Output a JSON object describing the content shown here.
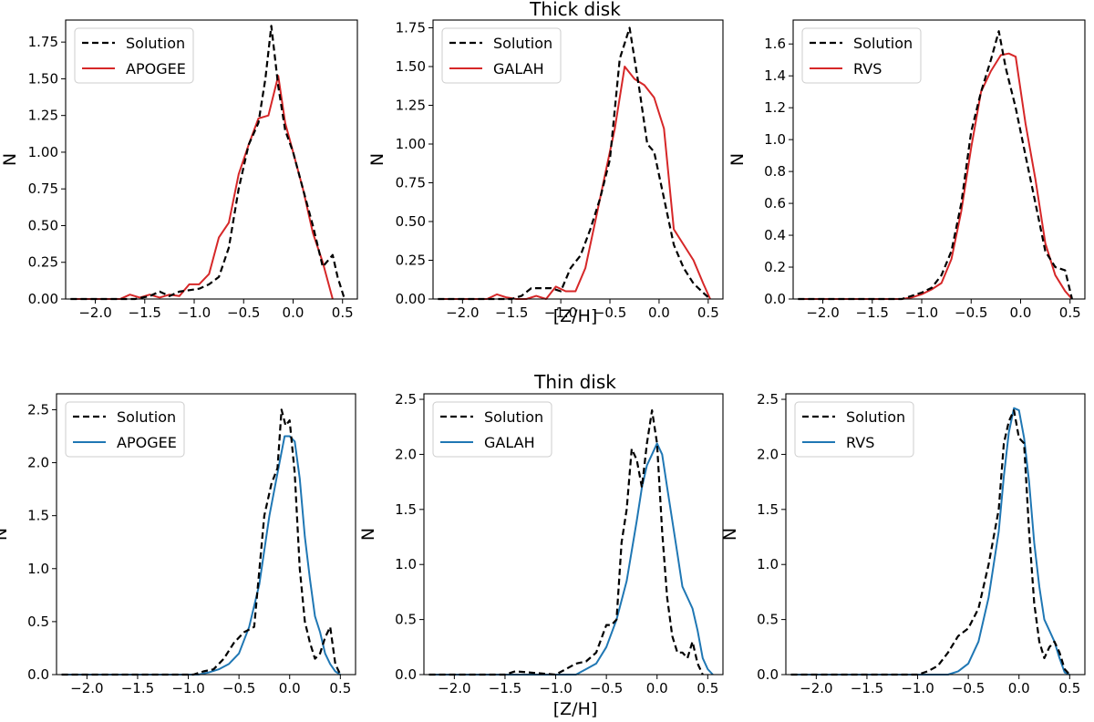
{
  "figure": {
    "row_titles": [
      "Thick disk",
      "Thin disk"
    ],
    "shared_xlabel": "[Z/H]",
    "ylabel": "N"
  },
  "colors": {
    "thick": "#d62728",
    "thin": "#1f77b4",
    "solution": "#000000"
  },
  "chart_data": [
    {
      "type": "line",
      "id": "thick-apogee",
      "title": "",
      "xlabel": "",
      "ylabel": "N",
      "xlim": [
        -2.3,
        0.65
      ],
      "ylim": [
        0,
        1.9
      ],
      "xticks": [
        -2.0,
        -1.5,
        -1.0,
        -0.5,
        0.0,
        0.5
      ],
      "xtick_labels": [
        "−2.0",
        "−1.5",
        "−1.0",
        "−0.5",
        "0.0",
        "0.5"
      ],
      "yticks": [
        0,
        0.25,
        0.5,
        0.75,
        1.0,
        1.25,
        1.5,
        1.75
      ],
      "ytick_labels": [
        "0.00",
        "0.25",
        "0.50",
        "0.75",
        "1.00",
        "1.25",
        "1.50",
        "1.75"
      ],
      "legend": [
        "Solution",
        "APOGEE"
      ],
      "series": [
        {
          "name": "Solution",
          "style": "dashed",
          "color_key": "solution",
          "x": [
            -2.25,
            -1.75,
            -1.6,
            -1.45,
            -1.35,
            -1.25,
            -1.15,
            -1.05,
            -0.95,
            -0.85,
            -0.75,
            -0.65,
            -0.55,
            -0.45,
            -0.35,
            -0.28,
            -0.22,
            -0.15,
            -0.08,
            0.0,
            0.1,
            0.2,
            0.3,
            0.4,
            0.45,
            0.52
          ],
          "y": [
            0,
            0,
            0,
            0.02,
            0.05,
            0.02,
            0.05,
            0.06,
            0.07,
            0.1,
            0.15,
            0.35,
            0.75,
            1.05,
            1.2,
            1.5,
            1.86,
            1.45,
            1.15,
            1.0,
            0.75,
            0.5,
            0.22,
            0.3,
            0.15,
            0.0
          ]
        },
        {
          "name": "APOGEE",
          "style": "solid",
          "color_key": "thick",
          "x": [
            -2.25,
            -1.75,
            -1.65,
            -1.55,
            -1.45,
            -1.35,
            -1.25,
            -1.15,
            -1.05,
            -0.95,
            -0.85,
            -0.75,
            -0.65,
            -0.55,
            -0.45,
            -0.35,
            -0.25,
            -0.15,
            -0.08,
            0.0,
            0.1,
            0.2,
            0.3,
            0.4
          ],
          "y": [
            0,
            0,
            0.03,
            0.01,
            0.03,
            0.01,
            0.03,
            0.02,
            0.1,
            0.1,
            0.17,
            0.42,
            0.52,
            0.85,
            1.05,
            1.23,
            1.25,
            1.52,
            1.2,
            1.0,
            0.75,
            0.45,
            0.25,
            0.0
          ]
        }
      ]
    },
    {
      "type": "line",
      "id": "thick-galah",
      "title": "",
      "xlabel": "[Z/H]",
      "ylabel": "N",
      "xlim": [
        -2.3,
        0.65
      ],
      "ylim": [
        0,
        1.8
      ],
      "xticks": [
        -2.0,
        -1.5,
        -1.0,
        -0.5,
        0.0,
        0.5
      ],
      "xtick_labels": [
        "−2.0",
        "−1.5",
        "−1.0",
        "−0.5",
        "0.0",
        "0.5"
      ],
      "yticks": [
        0,
        0.25,
        0.5,
        0.75,
        1.0,
        1.25,
        1.5,
        1.75
      ],
      "ytick_labels": [
        "0.00",
        "0.25",
        "0.50",
        "0.75",
        "1.00",
        "1.25",
        "1.50",
        "1.75"
      ],
      "legend": [
        "Solution",
        "GALAH"
      ],
      "series": [
        {
          "name": "Solution",
          "style": "dashed",
          "color_key": "solution",
          "x": [
            -2.25,
            -1.5,
            -1.4,
            -1.3,
            -1.2,
            -1.1,
            -1.0,
            -0.9,
            -0.8,
            -0.7,
            -0.6,
            -0.5,
            -0.4,
            -0.3,
            -0.2,
            -0.12,
            -0.05,
            0.05,
            0.15,
            0.25,
            0.35,
            0.45,
            0.52
          ],
          "y": [
            0,
            0,
            0.02,
            0.07,
            0.07,
            0.07,
            0.05,
            0.2,
            0.28,
            0.45,
            0.65,
            0.9,
            1.55,
            1.75,
            1.35,
            1.0,
            0.95,
            0.65,
            0.35,
            0.2,
            0.1,
            0.04,
            0.0
          ]
        },
        {
          "name": "GALAH",
          "style": "solid",
          "color_key": "thick",
          "x": [
            -2.25,
            -1.75,
            -1.65,
            -1.55,
            -1.45,
            -1.35,
            -1.25,
            -1.15,
            -1.05,
            -0.95,
            -0.85,
            -0.75,
            -0.65,
            -0.55,
            -0.45,
            -0.35,
            -0.25,
            -0.15,
            -0.05,
            0.05,
            0.15,
            0.25,
            0.35,
            0.45,
            0.52
          ],
          "y": [
            0,
            0,
            0.03,
            0.01,
            0.0,
            0.0,
            0.02,
            0.0,
            0.08,
            0.05,
            0.05,
            0.2,
            0.5,
            0.8,
            1.1,
            1.5,
            1.42,
            1.38,
            1.3,
            1.1,
            0.45,
            0.35,
            0.25,
            0.1,
            0.0
          ]
        }
      ]
    },
    {
      "type": "line",
      "id": "thick-rvs",
      "title": "",
      "xlabel": "",
      "ylabel": "N",
      "xlim": [
        -2.3,
        0.65
      ],
      "ylim": [
        0,
        1.75
      ],
      "xticks": [
        -2.0,
        -1.5,
        -1.0,
        -0.5,
        0.0,
        0.5
      ],
      "xtick_labels": [
        "−2.0",
        "−1.5",
        "−1.0",
        "−0.5",
        "0.0",
        "0.5"
      ],
      "yticks": [
        0,
        0.2,
        0.4,
        0.6,
        0.8,
        1.0,
        1.2,
        1.4,
        1.6
      ],
      "ytick_labels": [
        "0.0",
        "0.2",
        "0.4",
        "0.6",
        "0.8",
        "1.0",
        "1.2",
        "1.4",
        "1.6"
      ],
      "legend": [
        "Solution",
        "RVS"
      ],
      "series": [
        {
          "name": "Solution",
          "style": "dashed",
          "color_key": "solution",
          "x": [
            -2.25,
            -1.2,
            -1.1,
            -1.0,
            -0.9,
            -0.8,
            -0.7,
            -0.6,
            -0.5,
            -0.4,
            -0.3,
            -0.22,
            -0.15,
            -0.05,
            0.05,
            0.15,
            0.25,
            0.35,
            0.45,
            0.52
          ],
          "y": [
            0,
            0,
            0.02,
            0.04,
            0.07,
            0.15,
            0.3,
            0.6,
            1.05,
            1.3,
            1.5,
            1.68,
            1.45,
            1.2,
            0.9,
            0.6,
            0.3,
            0.2,
            0.18,
            0.0
          ]
        },
        {
          "name": "RVS",
          "style": "solid",
          "color_key": "thick",
          "x": [
            -2.25,
            -1.2,
            -1.1,
            -1.0,
            -0.9,
            -0.8,
            -0.7,
            -0.6,
            -0.5,
            -0.4,
            -0.3,
            -0.2,
            -0.12,
            -0.05,
            0.05,
            0.15,
            0.25,
            0.35,
            0.45,
            0.52
          ],
          "y": [
            0,
            0,
            0.01,
            0.03,
            0.06,
            0.1,
            0.25,
            0.55,
            0.95,
            1.3,
            1.43,
            1.53,
            1.54,
            1.52,
            1.1,
            0.75,
            0.35,
            0.15,
            0.05,
            0.0
          ]
        }
      ]
    },
    {
      "type": "line",
      "id": "thin-apogee",
      "title": "",
      "xlabel": "",
      "ylabel": "N",
      "xlim": [
        -2.3,
        0.65
      ],
      "ylim": [
        0,
        2.65
      ],
      "xticks": [
        -2.0,
        -1.5,
        -1.0,
        -0.5,
        0.0,
        0.5
      ],
      "xtick_labels": [
        "−2.0",
        "−1.5",
        "−1.0",
        "−0.5",
        "0.0",
        "0.5"
      ],
      "yticks": [
        0,
        0.5,
        1.0,
        1.5,
        2.0,
        2.5
      ],
      "ytick_labels": [
        "0.0",
        "0.5",
        "1.0",
        "1.5",
        "2.0",
        "2.5"
      ],
      "legend": [
        "Solution",
        "APOGEE"
      ],
      "series": [
        {
          "name": "Solution",
          "style": "dashed",
          "color_key": "solution",
          "x": [
            -2.25,
            -0.95,
            -0.85,
            -0.75,
            -0.65,
            -0.55,
            -0.45,
            -0.35,
            -0.25,
            -0.18,
            -0.12,
            -0.08,
            -0.04,
            0.0,
            0.05,
            0.1,
            0.15,
            0.2,
            0.25,
            0.3,
            0.35,
            0.4,
            0.45,
            0.5
          ],
          "y": [
            0,
            0,
            0.03,
            0.05,
            0.15,
            0.3,
            0.4,
            0.45,
            1.5,
            1.8,
            1.95,
            2.5,
            2.35,
            2.4,
            1.9,
            1.0,
            0.5,
            0.3,
            0.15,
            0.2,
            0.35,
            0.45,
            0.1,
            0.0
          ]
        },
        {
          "name": "APOGEE",
          "style": "solid",
          "color_key": "thin",
          "x": [
            -2.25,
            -0.9,
            -0.8,
            -0.7,
            -0.6,
            -0.5,
            -0.4,
            -0.3,
            -0.2,
            -0.1,
            -0.05,
            0.0,
            0.05,
            0.1,
            0.15,
            0.2,
            0.25,
            0.3,
            0.35,
            0.4,
            0.45,
            0.5
          ],
          "y": [
            0,
            0,
            0.02,
            0.05,
            0.1,
            0.2,
            0.45,
            0.85,
            1.5,
            2.0,
            2.25,
            2.25,
            2.2,
            1.85,
            1.3,
            0.9,
            0.55,
            0.4,
            0.2,
            0.1,
            0.03,
            0.0
          ]
        }
      ]
    },
    {
      "type": "line",
      "id": "thin-galah",
      "title": "",
      "xlabel": "[Z/H]",
      "ylabel": "N",
      "xlim": [
        -2.3,
        0.65
      ],
      "ylim": [
        0,
        2.55
      ],
      "xticks": [
        -2.0,
        -1.5,
        -1.0,
        -0.5,
        0.0,
        0.5
      ],
      "xtick_labels": [
        "−2.0",
        "−1.5",
        "−1.0",
        "−0.5",
        "0.0",
        "0.5"
      ],
      "yticks": [
        0,
        0.5,
        1.0,
        1.5,
        2.0,
        2.5
      ],
      "ytick_labels": [
        "0.0",
        "0.5",
        "1.0",
        "1.5",
        "2.0",
        "2.5"
      ],
      "legend": [
        "Solution",
        "GALAH"
      ],
      "series": [
        {
          "name": "Solution",
          "style": "dashed",
          "color_key": "solution",
          "x": [
            -2.25,
            -1.5,
            -1.4,
            -1.0,
            -0.9,
            -0.8,
            -0.7,
            -0.6,
            -0.5,
            -0.45,
            -0.4,
            -0.35,
            -0.3,
            -0.25,
            -0.2,
            -0.15,
            -0.1,
            -0.05,
            0.0,
            0.05,
            0.1,
            0.15,
            0.2,
            0.25,
            0.3,
            0.35,
            0.4,
            0.45
          ],
          "y": [
            0,
            0,
            0.03,
            0.0,
            0.05,
            0.1,
            0.12,
            0.2,
            0.45,
            0.45,
            0.5,
            1.2,
            1.5,
            2.05,
            1.95,
            1.7,
            2.1,
            2.4,
            2.1,
            1.3,
            0.7,
            0.35,
            0.2,
            0.2,
            0.15,
            0.3,
            0.1,
            0.0
          ]
        },
        {
          "name": "GALAH",
          "style": "solid",
          "color_key": "thin",
          "x": [
            -2.25,
            -0.8,
            -0.7,
            -0.6,
            -0.5,
            -0.4,
            -0.3,
            -0.2,
            -0.15,
            -0.1,
            -0.05,
            0.0,
            0.05,
            0.1,
            0.15,
            0.2,
            0.25,
            0.3,
            0.35,
            0.4,
            0.45,
            0.5,
            0.55
          ],
          "y": [
            0,
            0,
            0.05,
            0.1,
            0.25,
            0.5,
            0.85,
            1.4,
            1.7,
            1.9,
            2.0,
            2.1,
            2.0,
            1.7,
            1.4,
            1.1,
            0.8,
            0.7,
            0.6,
            0.4,
            0.15,
            0.05,
            0.0
          ]
        }
      ]
    },
    {
      "type": "line",
      "id": "thin-rvs",
      "title": "",
      "xlabel": "",
      "ylabel": "N",
      "xlim": [
        -2.3,
        0.65
      ],
      "ylim": [
        0,
        2.55
      ],
      "xticks": [
        -2.0,
        -1.5,
        -1.0,
        -0.5,
        0.0,
        0.5
      ],
      "xtick_labels": [
        "−2.0",
        "−1.5",
        "−1.0",
        "−0.5",
        "0.0",
        "0.5"
      ],
      "yticks": [
        0,
        0.5,
        1.0,
        1.5,
        2.0,
        2.5
      ],
      "ytick_labels": [
        "0.0",
        "0.5",
        "1.0",
        "1.5",
        "2.0",
        "2.5"
      ],
      "legend": [
        "Solution",
        "RVS"
      ],
      "series": [
        {
          "name": "Solution",
          "style": "dashed",
          "color_key": "solution",
          "x": [
            -2.25,
            -1.0,
            -0.9,
            -0.8,
            -0.7,
            -0.6,
            -0.5,
            -0.4,
            -0.3,
            -0.2,
            -0.15,
            -0.1,
            -0.05,
            0.0,
            0.05,
            0.1,
            0.15,
            0.2,
            0.25,
            0.3,
            0.35,
            0.4,
            0.45,
            0.5
          ],
          "y": [
            0,
            0,
            0.03,
            0.08,
            0.2,
            0.35,
            0.42,
            0.6,
            1.0,
            1.5,
            2.1,
            2.3,
            2.4,
            2.15,
            2.1,
            1.3,
            0.65,
            0.3,
            0.15,
            0.25,
            0.3,
            0.2,
            0.05,
            0.0
          ]
        },
        {
          "name": "RVS",
          "style": "solid",
          "color_key": "thin",
          "x": [
            -2.25,
            -0.7,
            -0.6,
            -0.5,
            -0.4,
            -0.3,
            -0.2,
            -0.15,
            -0.1,
            -0.05,
            0.0,
            0.05,
            0.1,
            0.15,
            0.2,
            0.25,
            0.3,
            0.35,
            0.4,
            0.45,
            0.5
          ],
          "y": [
            0,
            0,
            0.03,
            0.1,
            0.3,
            0.7,
            1.3,
            1.8,
            2.2,
            2.42,
            2.4,
            2.15,
            1.75,
            1.2,
            0.8,
            0.5,
            0.4,
            0.3,
            0.15,
            0.02,
            0.0
          ]
        }
      ]
    }
  ]
}
